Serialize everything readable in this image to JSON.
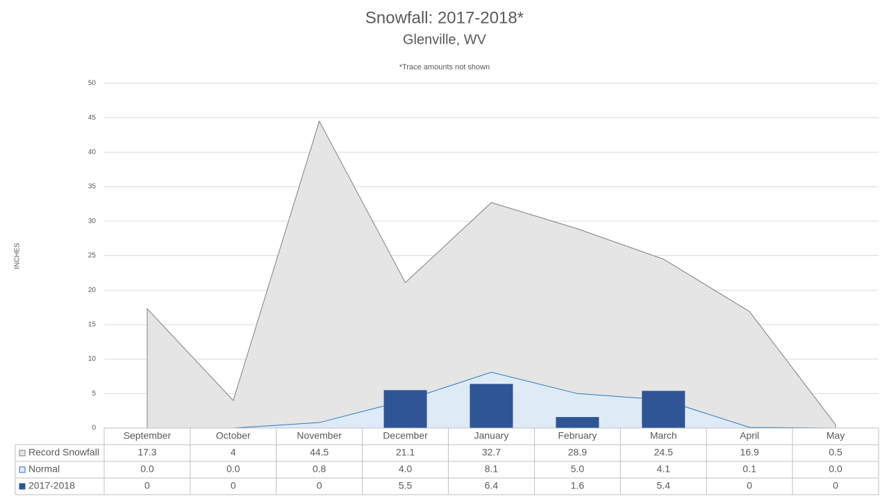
{
  "chart_data": {
    "type": "area-bar-table",
    "title": "Snowfall: 2017-2018*",
    "subtitle": "Glenville, WV",
    "annotation": "*Trace amounts not shown",
    "y_label": "INCHES",
    "categories": [
      "September",
      "October",
      "November",
      "December",
      "January",
      "February",
      "March",
      "April",
      "May"
    ],
    "series": [
      {
        "name": "Record Snowfall",
        "kind": "area",
        "color": "#e5e5e5",
        "line_color": "#7f7f7f",
        "values": [
          17.3,
          4,
          44.5,
          21.1,
          32.7,
          28.9,
          24.5,
          16.9,
          0.5
        ]
      },
      {
        "name": "Normal",
        "kind": "area",
        "color": "#deebf7",
        "line_color": "#2e75b6",
        "values": [
          0,
          0,
          0.8,
          4,
          8.1,
          5,
          4.1,
          0.1,
          0
        ],
        "value_labels": [
          "0.0",
          "0.0",
          "0.8",
          "4.0",
          "8.1",
          "5.0",
          "4.1",
          "0.1",
          "0.0"
        ]
      },
      {
        "name": "2017-2018",
        "kind": "bar",
        "color": "#2f5597",
        "values": [
          0,
          0,
          0,
          5.5,
          6.4,
          1.6,
          5.4,
          0,
          0
        ]
      }
    ],
    "ylim": [
      0,
      50
    ],
    "yticks": [
      0,
      5,
      10,
      15,
      20,
      25,
      30,
      35,
      40,
      45,
      50
    ],
    "grid": true
  }
}
